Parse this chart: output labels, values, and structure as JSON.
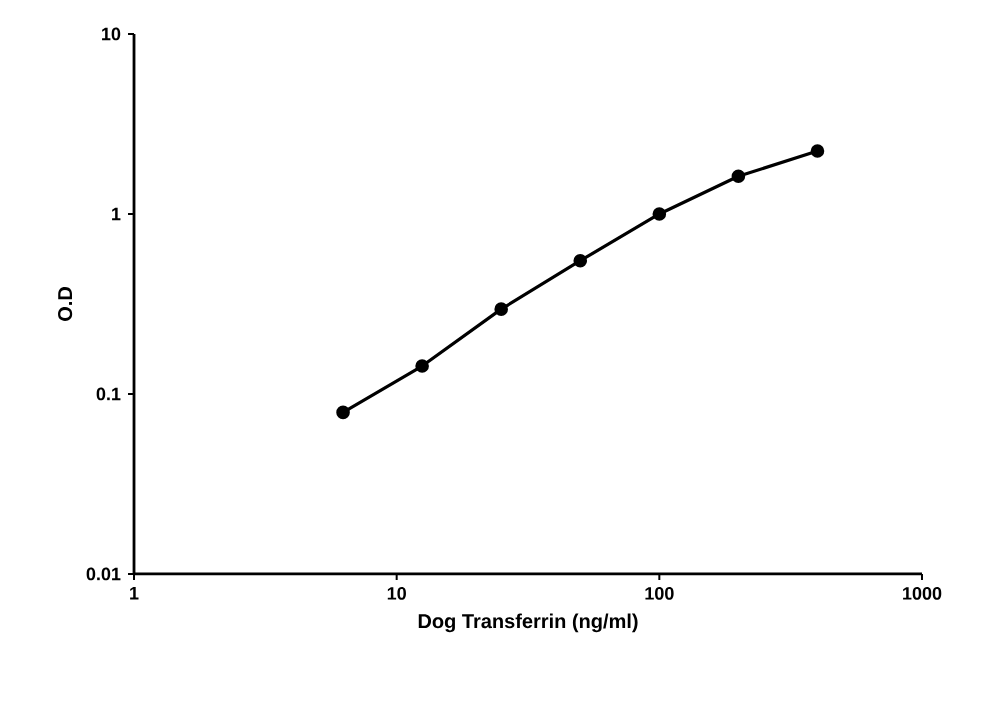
{
  "chart_data": {
    "type": "line",
    "xlabel": "Dog Transferrin (ng/ml)",
    "ylabel": "O.D",
    "log": "xy",
    "xlim": [
      1,
      1000
    ],
    "ylim": [
      0.01,
      10
    ],
    "xticks": [
      1,
      10,
      100,
      1000
    ],
    "yticks": [
      0.01,
      0.1,
      1,
      10
    ],
    "series": [
      {
        "color": "#000000",
        "x": [
          6.25,
          12.5,
          25,
          50,
          100,
          200,
          400
        ],
        "values": [
          0.079,
          0.143,
          0.296,
          0.55,
          1.0,
          1.62,
          2.24
        ]
      }
    ],
    "marker": "circle",
    "line_style": "solid"
  }
}
